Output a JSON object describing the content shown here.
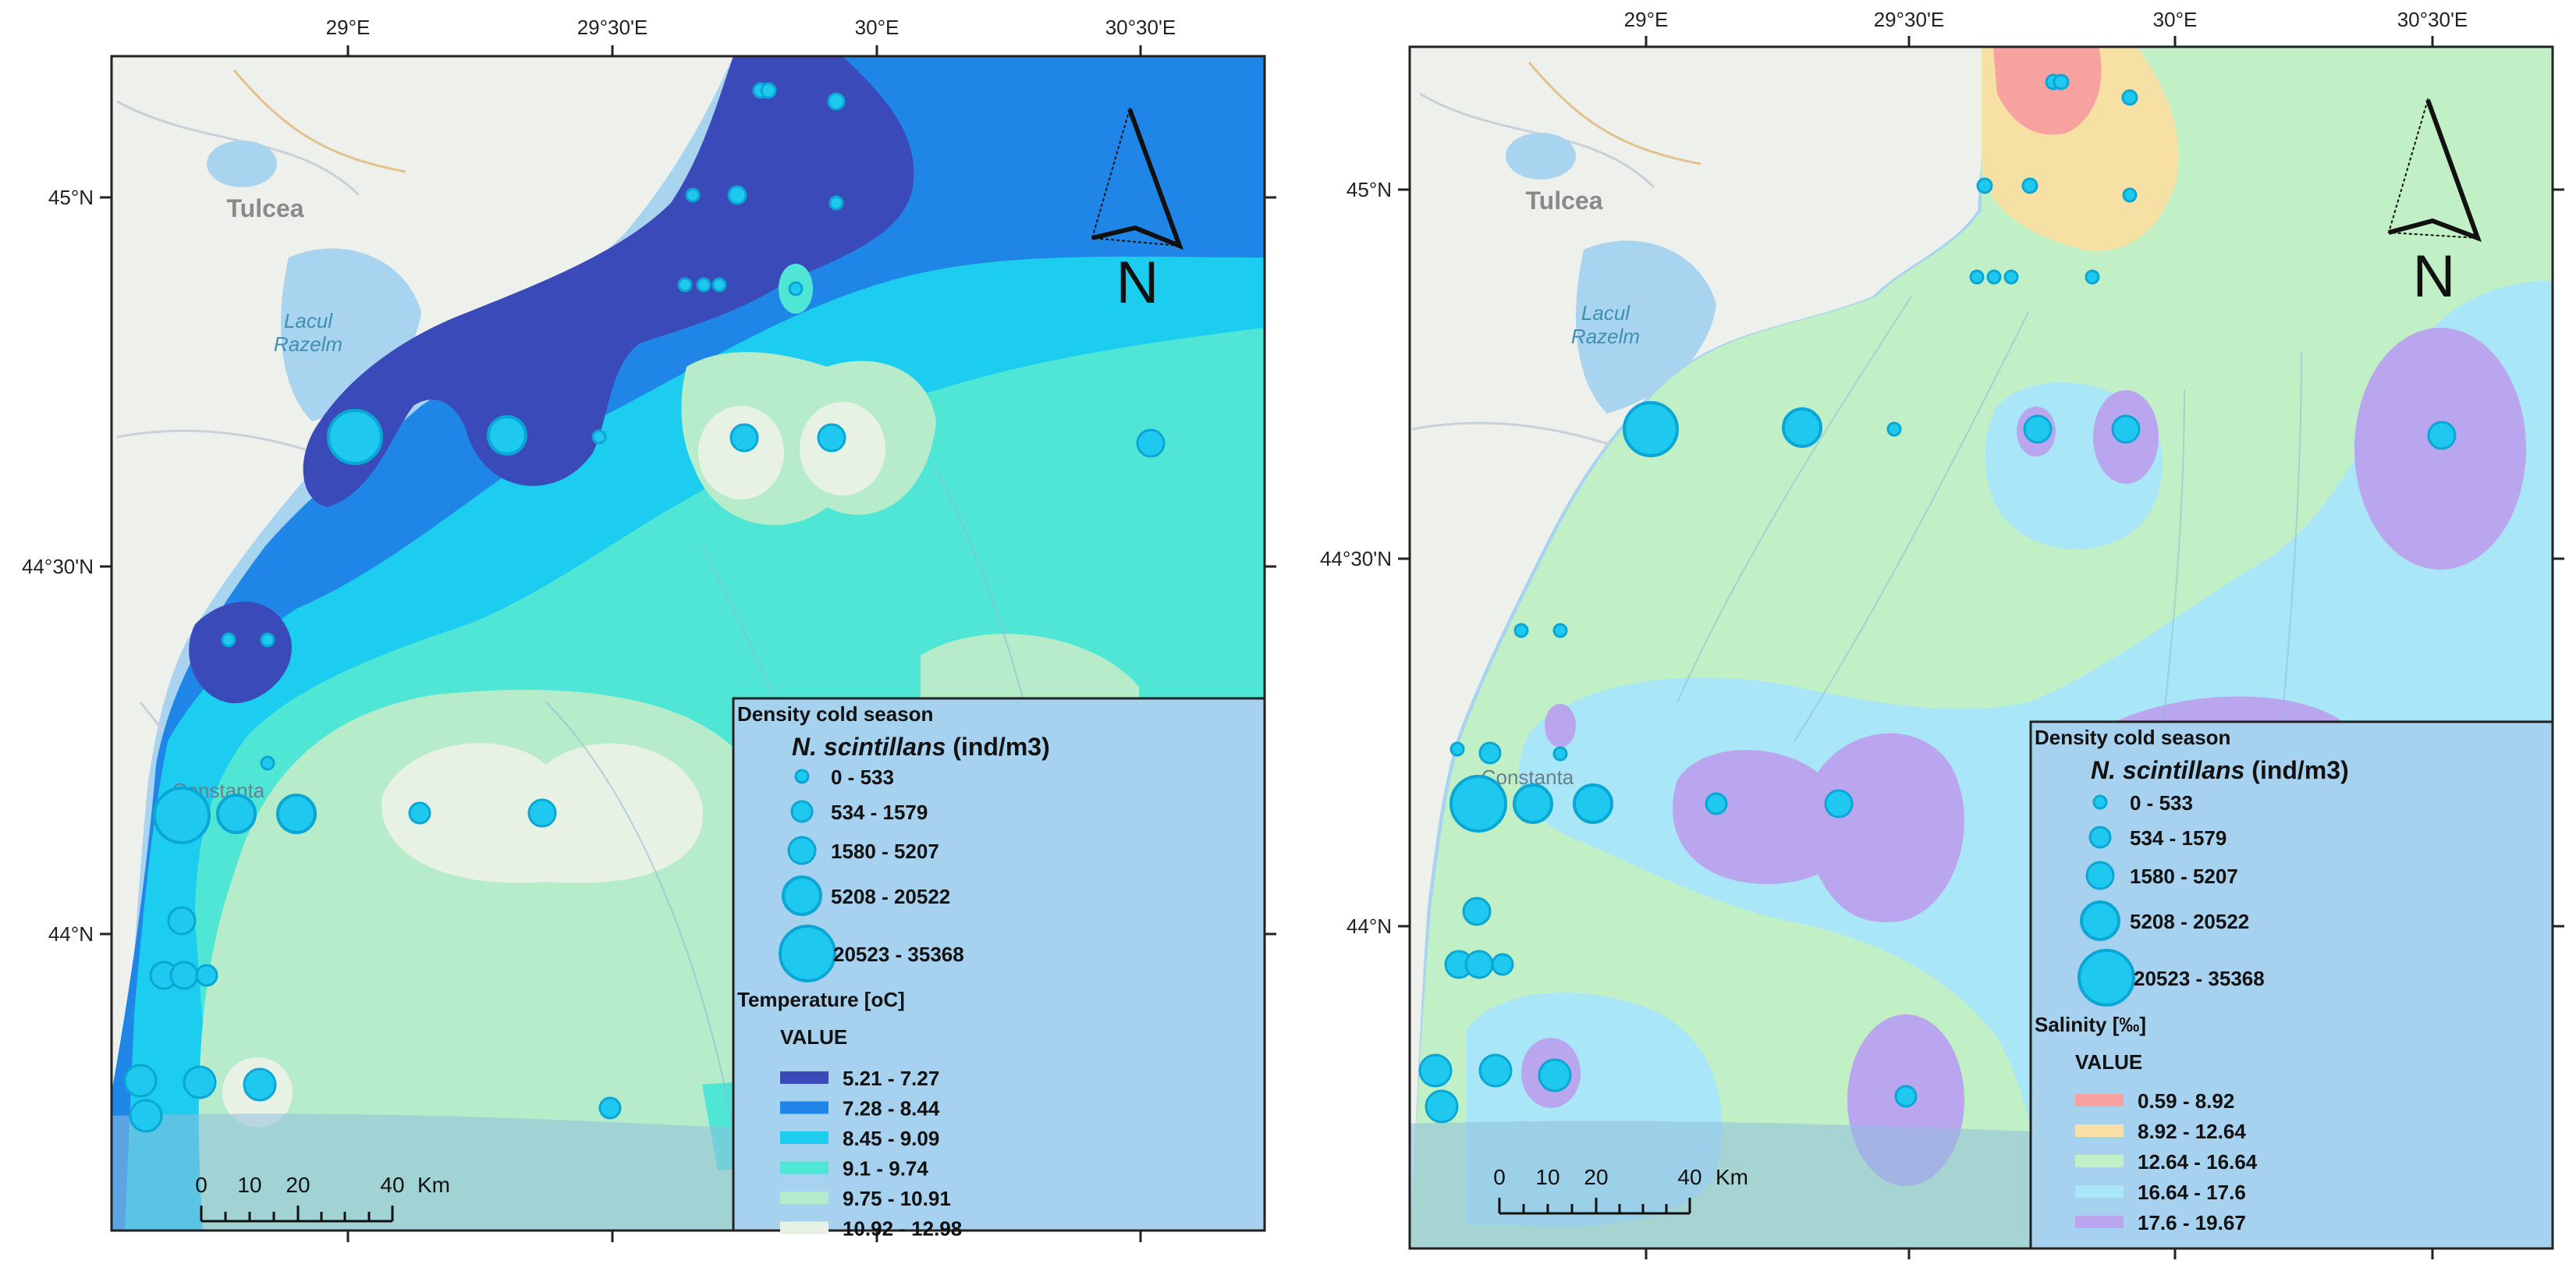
{
  "lon_labels": [
    "29°E",
    "29°30'E",
    "30°E",
    "30°30'E"
  ],
  "lat_labels": [
    "45°N",
    "44°30'N",
    "44°N"
  ],
  "places": {
    "tulcea": "Tulcea",
    "lake_line1": "Lacul",
    "lake_line2": "Razelm",
    "constanta": "Constanta"
  },
  "north_label": "N",
  "scale_bar": {
    "ticks": [
      "0",
      "10",
      "20",
      "40"
    ],
    "unit": "Km"
  },
  "density_legend": {
    "title": "Density cold season",
    "species": "N. scintillans",
    "unit": " (ind/m3)",
    "classes": [
      "0 - 533",
      "534 - 1579",
      "1580 - 5207",
      "5208 - 20522",
      "20523 - 35368"
    ]
  },
  "temperature_legend": {
    "title": "Temperature [oC]",
    "value_label": "VALUE",
    "classes": [
      {
        "label": "5.21 - 7.27",
        "color": "#3a4ab8"
      },
      {
        "label": "7.28 - 8.44",
        "color": "#1f86e8"
      },
      {
        "label": "8.45 - 9.09",
        "color": "#1ccdef"
      },
      {
        "label": "9.1 - 9.74",
        "color": "#4fe6d6"
      },
      {
        "label": "9.75 - 10.91",
        "color": "#b6ecc9"
      },
      {
        "label": "10.92 - 12.98",
        "color": "#e8f2e4"
      }
    ]
  },
  "salinity_legend": {
    "title": "Salinity [‰]",
    "value_label": "VALUE",
    "classes": [
      {
        "label": "0.59 - 8.92",
        "color": "#f7a1a1"
      },
      {
        "label": "8.92 - 12.64",
        "color": "#f6e0a4"
      },
      {
        "label": "12.64 - 16.64",
        "color": "#c2f0c6"
      },
      {
        "label": "16.64 - 17.6",
        "color": "#a9e6f7"
      },
      {
        "label": "17.6 - 19.67",
        "color": "#b9a6ee"
      }
    ]
  },
  "colors": {
    "marker": "#1ec8ef",
    "marker_stroke": "#0aa6d4",
    "sea": "#a9d4ef",
    "land": "#eef0ec"
  }
}
